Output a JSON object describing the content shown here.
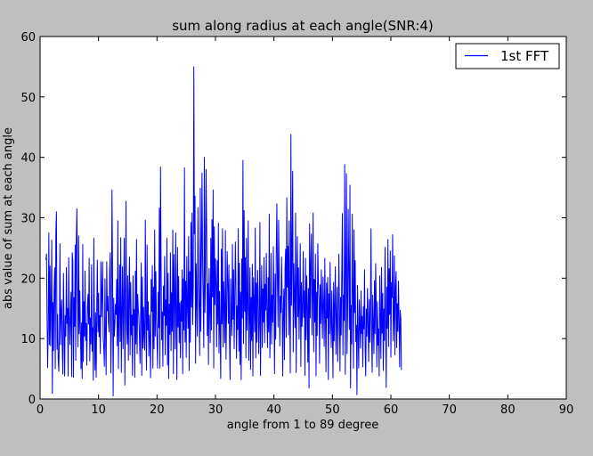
{
  "chart_data": {
    "type": "line",
    "title": "sum along radius at each angle(SNR:4)",
    "xlabel": "angle from 1 to 89 degree",
    "ylabel": "abs value of sum at each angle",
    "xlim": [
      0,
      90
    ],
    "ylim": [
      0,
      60
    ],
    "xticks": [
      0,
      10,
      20,
      30,
      40,
      50,
      60,
      70,
      80,
      90
    ],
    "yticks": [
      0,
      10,
      20,
      30,
      40,
      50,
      60
    ],
    "grid": false,
    "legend_position": "top-right",
    "series": [
      {
        "name": "1st FFT",
        "color": "#0000ff",
        "x_start": 1,
        "x_step": 0.1,
        "values": [
          23,
          24,
          13,
          5.2,
          12,
          27.5,
          9,
          22,
          8.8,
          16,
          26.3,
          0.9,
          16,
          8,
          18,
          21.7,
          5,
          27.5,
          31,
          8.2,
          14,
          6.6,
          4.6,
          10.3,
          25.7,
          9,
          14.6,
          16.4,
          8.2,
          4.1,
          20.8,
          12.5,
          3.8,
          13.8,
          10.4,
          21.8,
          12.5,
          15,
          3.8,
          23.4,
          13.9,
          9,
          13.7,
          17.7,
          3.7,
          24.2,
          22.8,
          3.6,
          16.8,
          12,
          25.5,
          6.4,
          26.5,
          31.5,
          17.8,
          8.6,
          27,
          10.8,
          17.9,
          11.4,
          5,
          12.6,
          3.4,
          25.6,
          6.2,
          16.1,
          10.4,
          21.2,
          9.7,
          12.5,
          5.6,
          15.2,
          17.3,
          12.4,
          23.3,
          6.3,
          13.4,
          9.1,
          22.2,
          7.9,
          11.8,
          3.1,
          26.6,
          12.5,
          4.8,
          14.3,
          3.6,
          15.2,
          23,
          11.1,
          17.5,
          10.3,
          13.8,
          7.5,
          22.7,
          13.6,
          17.7,
          22.7,
          10.2,
          8.5,
          5.4,
          19.9,
          10.5,
          4,
          22.7,
          14.6,
          17,
          12.6,
          11.1,
          20.9,
          24.2,
          4.3,
          11.2,
          34.6,
          21.2,
          0.5,
          16.7,
          10.4,
          12.5,
          15.7,
          14,
          19.8,
          8.8,
          29.5,
          5,
          13.7,
          22.2,
          9.5,
          26.7,
          4.4,
          14.3,
          21.9,
          8.3,
          16.5,
          26.6,
          2.3,
          14.5,
          32.7,
          12.3,
          9.1,
          20.4,
          6.4,
          17.4,
          23.5,
          7.3,
          19.3,
          10.6,
          13.9,
          3.9,
          20.4,
          12.2,
          14.8,
          3.6,
          21.2,
          9.1,
          26.4,
          7.5,
          17.3,
          14.9,
          13.5,
          10.3,
          5.9,
          14.4,
          22.5,
          3.9,
          20.2,
          8.4,
          15.2,
          10.5,
          8.1,
          29.6,
          12.5,
          4.8,
          25.5,
          11.4,
          16.1,
          7.1,
          13.9,
          9.7,
          3.5,
          19.8,
          14.5,
          22.1,
          5.1,
          18.5,
          8.3,
          28,
          10.4,
          21.1,
          13.2,
          9.6,
          5.1,
          17.7,
          11.8,
          31.6,
          5.1,
          38.4,
          22.1,
          9.8,
          14.4,
          5.4,
          18.7,
          13.8,
          23.6,
          7.3,
          16.4,
          12.2,
          26.6,
          5.6,
          20.8,
          3.4,
          15.7,
          10.7,
          24.2,
          8,
          17.6,
          11.2,
          28,
          4.2,
          23.9,
          17.4,
          8.3,
          27.5,
          14.9,
          3.2,
          25.1,
          11.9,
          20.3,
          9.3,
          15.9,
          6.8,
          16.2,
          12.9,
          21.4,
          4.2,
          19.9,
          11.4,
          38.3,
          9.4,
          19.5,
          6.9,
          23.6,
          15.5,
          11.7,
          26.9,
          4.7,
          21.1,
          9.4,
          29.2,
          15.2,
          30.8,
          12.3,
          18.7,
          55,
          27.3,
          33.6,
          5.9,
          22.4,
          16,
          10.4,
          31.7,
          19.2,
          14.5,
          7.2,
          34.9,
          11.2,
          23.5,
          37.4,
          22.7,
          16.2,
          8.5,
          40,
          14.3,
          21.7,
          38,
          27.1,
          10.5,
          19.1,
          5.7,
          21.6,
          15.8,
          9.3,
          26.6,
          11.4,
          29.7,
          16.9,
          34.6,
          5.1,
          28.5,
          15.6,
          23.2,
          18.8,
          8.6,
          22.9,
          12.4,
          29.1,
          7.6,
          17.8,
          11,
          3.4,
          24.8,
          12.4,
          28.2,
          8.6,
          19.4,
          15,
          9.3,
          27.9,
          6.6,
          14.1,
          24.4,
          19.5,
          12.5,
          22.2,
          10.1,
          3.2,
          19.9,
          13.6,
          10.5,
          25.6,
          13.2,
          21.4,
          8.3,
          16.4,
          26,
          18.5,
          6.7,
          15.4,
          11.5,
          28.2,
          7.9,
          22.5,
          5.7,
          17.7,
          3.2,
          23.2,
          13.4,
          39.5,
          9.2,
          31.2,
          14.5,
          23.4,
          6.8,
          26.6,
          11.4,
          15.8,
          29.5,
          6.4,
          13.1,
          21.7,
          4.9,
          16.8,
          9.7,
          22.3,
          3.8,
          20.1,
          15.6,
          11.1,
          28.3,
          6.8,
          19.2,
          9.4,
          21.3,
          17.5,
          7.5,
          12.5,
          29.2,
          3.9,
          15.6,
          22.1,
          8.5,
          18.2,
          12.7,
          23.4,
          9.3,
          19,
          14.7,
          24.1,
          13.7,
          8.5,
          20.1,
          11.1,
          30.6,
          6.8,
          13,
          24.1,
          9.1,
          17.2,
          12.7,
          25.2,
          16.3,
          4.2,
          20.7,
          9.9,
          24.5,
          32.3,
          19.3,
          11.9,
          29.6,
          21.1,
          8.8,
          17,
          14.3,
          23.5,
          16.9,
          3.8,
          14.6,
          18.2,
          6.5,
          21.7,
          24.8,
          10.2,
          33.3,
          18.5,
          25.3,
          10.6,
          29.5,
          14.8,
          4.3,
          43.8,
          15.5,
          24.1,
          37.7,
          7.8,
          22.4,
          17,
          11.8,
          30.8,
          4.4,
          18.6,
          26.9,
          13.6,
          21.7,
          9.9,
          16.6,
          25.7,
          5.4,
          19.3,
          12,
          14.6,
          24.4,
          13.5,
          17.9,
          3.9,
          23.3,
          9.8,
          20.4,
          15.6,
          6.1,
          18.3,
          1.8,
          29,
          13.4,
          22.5,
          27.3,
          10.6,
          16.7,
          30.8,
          7.8,
          19.8,
          12.7,
          24,
          3.8,
          17.7,
          10.5,
          25.7,
          19.2,
          16.1,
          5.9,
          18.9,
          12.5,
          21.4,
          14.9,
          10,
          20.2,
          15.6,
          8.7,
          23.3,
          13.8,
          4.5,
          19.2,
          13.4,
          20.1,
          3.2,
          17.4,
          10.8,
          22.6,
          14.3,
          8.5,
          17.9,
          11.2,
          3.5,
          19.3,
          9.6,
          15.8,
          21.9,
          7.4,
          13.6,
          18.5,
          6.2,
          11.3,
          24,
          15.3,
          4.6,
          16.8,
          10.6,
          20.7,
          30.7,
          7.3,
          17.2,
          13,
          38.8,
          4.1,
          22.2,
          37.3,
          7.5,
          14.2,
          31.4,
          21.2,
          11.5,
          35.4,
          1.8,
          15.5,
          9.1,
          30.6,
          17.5,
          5.1,
          28,
          14.3,
          22.9,
          9.5,
          12.2,
          0.7,
          18.8,
          10.9,
          5.1,
          16.4,
          12.1,
          8.4,
          17.9,
          10.8,
          13.7,
          5.3,
          15.3,
          11.6,
          21.4,
          8,
          3.8,
          14.9,
          10.4,
          18.3,
          12.6,
          6.2,
          16.5,
          9.4,
          13.8,
          28.2,
          10.1,
          4.4,
          17.2,
          12.3,
          7.5,
          19.6,
          10.8,
          22.4,
          14.7,
          5.3,
          16.1,
          8.9,
          11.6,
          3.8,
          20.4,
          13.8,
          6.7,
          21.8,
          10.9,
          17.5,
          4.7,
          14.9,
          9.7,
          25.1,
          13.2,
          1.9,
          18.5,
          11.7,
          26.4,
          8.7,
          21.6,
          14,
          24.5,
          6.9,
          19.3,
          16.8,
          27.2,
          9.6,
          13.1,
          23.7,
          7.3,
          18.4,
          21.1,
          8.5,
          15.8,
          11.2,
          19.5,
          13.2,
          5.3,
          14.7,
          13.2,
          4.8
        ]
      }
    ]
  }
}
